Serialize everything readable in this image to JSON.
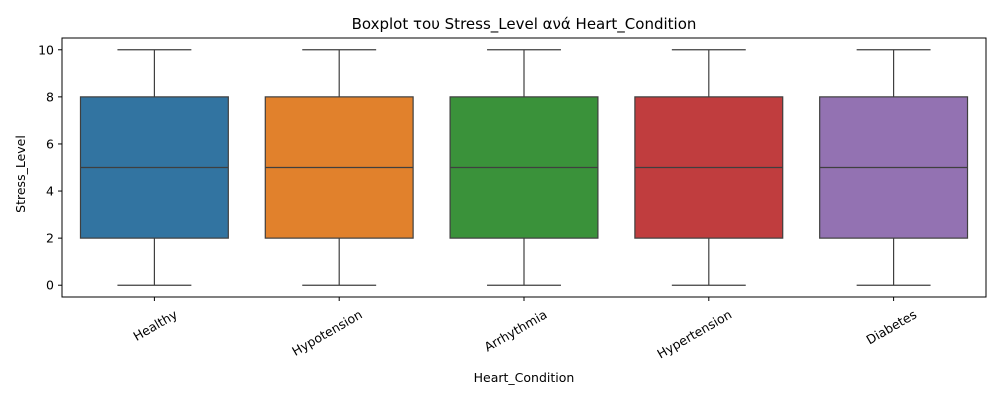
{
  "chart_data": {
    "type": "boxplot",
    "title": "Boxplot του Stress_Level ανά Heart_Condition",
    "xlabel": "Heart_Condition",
    "ylabel": "Stress_Level",
    "ylim": [
      -0.5,
      10.5
    ],
    "yticks": [
      0,
      2,
      4,
      6,
      8,
      10
    ],
    "grid": false,
    "categories": [
      "Healthy",
      "Hypotension",
      "Arrhythmia",
      "Hypertension",
      "Diabetes"
    ],
    "colors": [
      "#3274a1",
      "#e1812c",
      "#3a923a",
      "#c03d3e",
      "#9372b2"
    ],
    "boxes": [
      {
        "min": 0,
        "q1": 2,
        "median": 5,
        "q3": 8,
        "max": 10
      },
      {
        "min": 0,
        "q1": 2,
        "median": 5,
        "q3": 8,
        "max": 10
      },
      {
        "min": 0,
        "q1": 2,
        "median": 5,
        "q3": 8,
        "max": 10
      },
      {
        "min": 0,
        "q1": 2,
        "median": 5,
        "q3": 8,
        "max": 10
      },
      {
        "min": 0,
        "q1": 2,
        "median": 5,
        "q3": 8,
        "max": 10
      }
    ]
  }
}
